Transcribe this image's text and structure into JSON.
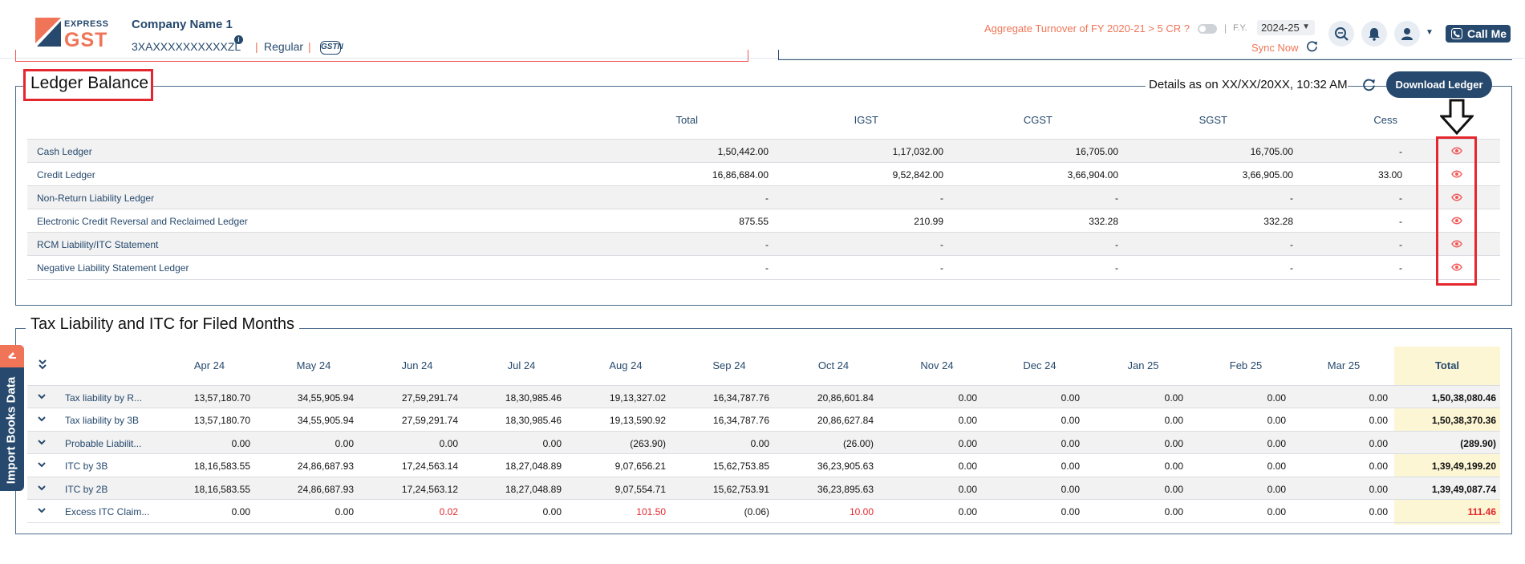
{
  "header": {
    "logo_top": "EXPRESS",
    "logo_main": "GST",
    "company_name": "Company Name 1",
    "gstin": "3XAXXXXXXXXXXZL",
    "info_glyph": "i",
    "separator": "|",
    "registration_type": "Regular",
    "gstn_badge": "GSTN",
    "aggregate_turnover": "Aggregate Turnover of FY 2020-21 > 5 CR ?",
    "fy_label": "F.Y.",
    "fy_value": "2024-25",
    "sync_label": "Sync Now",
    "call_label": "Call Me"
  },
  "ledger": {
    "title": "Ledger Balance",
    "details": "Details as on XX/XX/20XX, 10:32 AM",
    "download_label": "Download Ledger",
    "columns": [
      "Total",
      "IGST",
      "CGST",
      "SGST",
      "Cess"
    ],
    "rows": [
      {
        "name": "Cash Ledger",
        "values": [
          "1,50,442.00",
          "1,17,032.00",
          "16,705.00",
          "16,705.00",
          "-"
        ]
      },
      {
        "name": "Credit Ledger",
        "values": [
          "16,86,684.00",
          "9,52,842.00",
          "3,66,904.00",
          "3,66,905.00",
          "33.00"
        ]
      },
      {
        "name": "Non-Return Liability Ledger",
        "values": [
          "-",
          "-",
          "-",
          "-",
          "-"
        ]
      },
      {
        "name": "Electronic Credit Reversal and Reclaimed Ledger",
        "values": [
          "875.55",
          "210.99",
          "332.28",
          "332.28",
          "-"
        ]
      },
      {
        "name": "RCM Liability/ITC Statement",
        "values": [
          "-",
          "-",
          "-",
          "-",
          "-"
        ]
      },
      {
        "name": "Negative Liability Statement Ledger",
        "values": [
          "-",
          "-",
          "-",
          "-",
          "-"
        ]
      }
    ]
  },
  "tax": {
    "title": "Tax Liability and ITC for Filed Months",
    "side_tab": "Import Books Data",
    "months": [
      "Apr 24",
      "May 24",
      "Jun 24",
      "Jul 24",
      "Aug 24",
      "Sep 24",
      "Oct 24",
      "Nov 24",
      "Dec 24",
      "Jan 25",
      "Feb 25",
      "Mar 25"
    ],
    "total_label": "Total",
    "rows": [
      {
        "name": "Tax liability by R...",
        "values": [
          "13,57,180.70",
          "34,55,905.94",
          "27,59,291.74",
          "18,30,985.46",
          "19,13,327.02",
          "16,34,787.76",
          "20,86,601.84",
          "0.00",
          "0.00",
          "0.00",
          "0.00",
          "0.00"
        ],
        "total": "1,50,38,080.46"
      },
      {
        "name": "Tax liability by 3B",
        "values": [
          "13,57,180.70",
          "34,55,905.94",
          "27,59,291.74",
          "18,30,985.46",
          "19,13,590.92",
          "16,34,787.76",
          "20,86,627.84",
          "0.00",
          "0.00",
          "0.00",
          "0.00",
          "0.00"
        ],
        "total": "1,50,38,370.36"
      },
      {
        "name": "Probable Liabilit...",
        "values": [
          "0.00",
          "0.00",
          "0.00",
          "0.00",
          "(263.90)",
          "0.00",
          "(26.00)",
          "0.00",
          "0.00",
          "0.00",
          "0.00",
          "0.00"
        ],
        "total": "(289.90)"
      },
      {
        "name": "ITC by 3B",
        "values": [
          "18,16,583.55",
          "24,86,687.93",
          "17,24,563.14",
          "18,27,048.89",
          "9,07,656.21",
          "15,62,753.85",
          "36,23,905.63",
          "0.00",
          "0.00",
          "0.00",
          "0.00",
          "0.00"
        ],
        "total": "1,39,49,199.20"
      },
      {
        "name": "ITC by 2B",
        "values": [
          "18,16,583.55",
          "24,86,687.93",
          "17,24,563.12",
          "18,27,048.89",
          "9,07,554.71",
          "15,62,753.91",
          "36,23,895.63",
          "0.00",
          "0.00",
          "0.00",
          "0.00",
          "0.00"
        ],
        "total": "1,39,49,087.74"
      },
      {
        "name": "Excess ITC Claim...",
        "values": [
          "0.00",
          "0.00",
          "0.02",
          "0.00",
          "101.50",
          "(0.06)",
          "10.00",
          "0.00",
          "0.00",
          "0.00",
          "0.00",
          "0.00"
        ],
        "total": "111.46",
        "highlight_indices": [
          2,
          4,
          6
        ],
        "highlight_total": true
      }
    ]
  },
  "colors": {
    "brand_navy": "#26496d",
    "brand_orange": "#f07457",
    "highlight_red": "#e4272e",
    "total_band": "#fcf6d4"
  }
}
